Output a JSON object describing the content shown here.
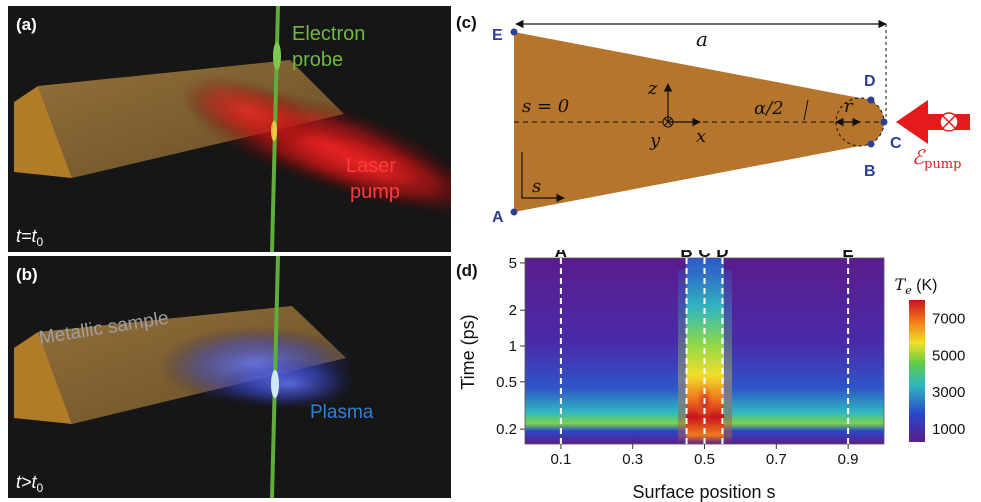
{
  "panel_a": {
    "label": "(a)",
    "probe_label_line1": "Electron",
    "probe_label_line2": "probe",
    "pump_label_line1": "Laser",
    "pump_label_line2": "pump",
    "time_label": "t=t0"
  },
  "panel_b": {
    "label": "(b)",
    "sample_label": "Metallic sample",
    "plasma_label": "Plasma",
    "time_label": "t>t0"
  },
  "panel_c": {
    "label": "(c)",
    "points": [
      "A",
      "B",
      "C",
      "D",
      "E"
    ],
    "dim_a": "a",
    "s_zero": "s = 0",
    "s_label": "s",
    "z_axis": "z",
    "x_axis": "x",
    "y_axis": "y",
    "alpha": "α/2",
    "r": "r",
    "pump_field": "Epump",
    "colors": {
      "wedge": "#b5752d",
      "points": "#2d3f95",
      "pump": "#e61a1a"
    }
  },
  "panel_d": {
    "label": "(d)",
    "xlabel": "Surface position s",
    "ylabel": "Time (ps)",
    "colorbar_title": "Te (K)",
    "x_ticks": [
      "0.1",
      "0.3",
      "0.5",
      "0.7",
      "0.9"
    ],
    "y_ticks": [
      "5",
      "2",
      "1",
      "0.5",
      "0.2"
    ],
    "cb_ticks": [
      "7000",
      "5000",
      "3000",
      "1000"
    ],
    "markers": [
      {
        "label": "A",
        "s": 0.1
      },
      {
        "label": "B",
        "s": 0.45
      },
      {
        "label": "C",
        "s": 0.5
      },
      {
        "label": "D",
        "s": 0.55
      },
      {
        "label": "E",
        "s": 0.9
      }
    ]
  },
  "chart_data": {
    "type": "heatmap",
    "xlabel": "Surface position s",
    "ylabel": "Time (ps)",
    "xlim": [
      0,
      1
    ],
    "ylim_log": [
      0.15,
      5.5
    ],
    "colorbar": {
      "label": "Te (K)",
      "range": [
        300,
        8000
      ]
    },
    "x": [
      0.1,
      0.45,
      0.5,
      0.55,
      0.9
    ],
    "series": [
      {
        "time_ps": 0.3,
        "Te_K": [
          2800,
          6200,
          8000,
          6200,
          2800
        ]
      },
      {
        "time_ps": 1,
        "Te_K": [
          800,
          4200,
          5200,
          4200,
          800
        ]
      },
      {
        "time_ps": 5,
        "Te_K": [
          500,
          1300,
          1600,
          1300,
          500
        ]
      }
    ]
  }
}
